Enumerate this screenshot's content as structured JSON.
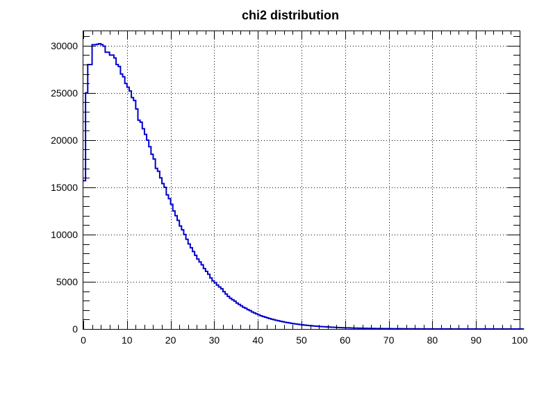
{
  "chart_data": {
    "type": "bar",
    "style": "step-histogram",
    "title": "chi2 distribution",
    "xlabel": "",
    "ylabel": "",
    "xlim": [
      0,
      100
    ],
    "ylim": [
      0,
      31600
    ],
    "grid": true,
    "legend": "none",
    "bin_width": 0.5,
    "x_ticks": [
      "0",
      "10",
      "20",
      "30",
      "40",
      "50",
      "60",
      "70",
      "80",
      "90",
      "100"
    ],
    "y_ticks": [
      "0",
      "5000",
      "10000",
      "15000",
      "20000",
      "25000",
      "30000"
    ],
    "series": [
      {
        "color": "#0000cc",
        "values": [
          15700,
          25000,
          28000,
          28000,
          30100,
          30100,
          30150,
          30200,
          30100,
          29950,
          29300,
          29300,
          29000,
          29000,
          28700,
          28000,
          27800,
          27000,
          26700,
          26000,
          25600,
          25200,
          24500,
          24200,
          23300,
          22100,
          21900,
          21200,
          20600,
          20000,
          19300,
          18500,
          18000,
          17000,
          16700,
          16000,
          15400,
          15000,
          14200,
          13800,
          13200,
          12500,
          12000,
          11500,
          10900,
          10500,
          10000,
          9500,
          9000,
          8600,
          8200,
          7800,
          7400,
          7100,
          6800,
          6400,
          6100,
          5800,
          5400,
          5100,
          4900,
          4650,
          4450,
          4250,
          3950,
          3700,
          3450,
          3250,
          3100,
          2950,
          2750,
          2600,
          2450,
          2300,
          2200,
          2050,
          1950,
          1800,
          1700,
          1600,
          1500,
          1400,
          1320,
          1250,
          1180,
          1100,
          1040,
          980,
          920,
          870,
          820,
          770,
          720,
          680,
          640,
          600,
          560,
          530,
          500,
          470,
          440,
          410,
          390,
          365,
          345,
          325,
          305,
          285,
          268,
          250,
          235,
          220,
          207,
          194,
          182,
          171,
          160,
          150,
          141,
          132,
          124,
          116,
          109,
          102,
          96,
          90,
          84,
          79,
          74,
          69,
          65,
          61,
          57,
          53,
          50,
          47,
          44,
          41,
          38,
          36,
          34,
          32,
          30,
          28,
          26,
          24,
          23,
          21,
          20,
          18,
          17,
          16,
          15,
          14,
          13,
          12,
          11,
          10,
          10,
          9,
          8,
          8,
          7,
          7,
          6,
          6,
          5,
          5,
          5,
          4,
          4,
          4,
          3,
          3,
          3,
          3,
          2,
          2,
          2,
          2,
          2,
          2,
          1,
          1,
          1,
          1,
          1,
          1,
          1,
          1,
          1,
          1,
          0,
          0,
          0,
          0,
          0,
          0,
          0,
          0,
          0,
          0
        ]
      }
    ]
  }
}
